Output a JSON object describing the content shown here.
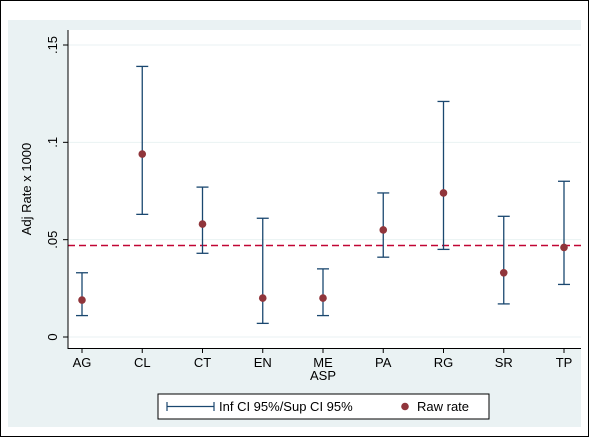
{
  "chart_data": {
    "type": "errorbar",
    "categories": [
      "AG",
      "CL",
      "CT",
      "EN",
      "ME",
      "PA",
      "RG",
      "SR",
      "TP"
    ],
    "category_sublabels": [
      "",
      "",
      "",
      "",
      "ASP",
      "",
      "",
      "",
      ""
    ],
    "series": [
      {
        "name": "Inf CI 95%/Sup CI 95%",
        "kind": "rcap",
        "color": "#1a476f",
        "lower": [
          0.011,
          0.063,
          0.043,
          0.007,
          0.011,
          0.041,
          0.045,
          0.017,
          0.027
        ],
        "upper": [
          0.033,
          0.139,
          0.077,
          0.061,
          0.035,
          0.074,
          0.121,
          0.062,
          0.08
        ]
      },
      {
        "name": "Raw rate",
        "kind": "scatter",
        "color": "#90353b",
        "values": [
          0.019,
          0.094,
          0.058,
          0.02,
          0.02,
          0.055,
          0.074,
          0.033,
          0.046
        ]
      }
    ],
    "reference_line": {
      "y": 0.047,
      "color": "#c10534",
      "style": "dashed"
    },
    "ylabel": "Adj Rate x 1000",
    "xlabel": "",
    "ylim": [
      0,
      0.15
    ],
    "yticks": [
      0,
      0.05,
      0.1,
      0.15
    ],
    "ytick_labels": [
      "0",
      ".05",
      ".1",
      ".15"
    ],
    "grid": "horizontal",
    "legend_position": "bottom",
    "colors": {
      "outer_background": "#eaf2f3",
      "plot_background": "#ffffff",
      "grid": "#eaf2f3",
      "border": "#000000"
    }
  }
}
